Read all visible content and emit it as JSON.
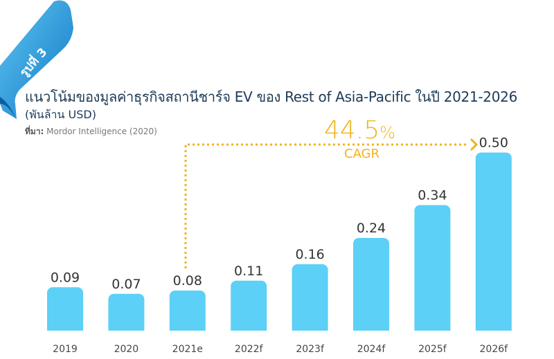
{
  "badge": "รูปที่ 3",
  "header": {
    "title": "แนวโน้มของมูลค่าธุรกิจสถานีชาร์จ EV ของ Rest of Asia-Pacific ในปี 2021-2026",
    "subtitle": "(พันล้าน USD)",
    "source_label": "ที่มา:",
    "source_text": " Mordor Intelligence (2020)"
  },
  "annotation": {
    "value": "44.5",
    "unit": "%",
    "label": "CAGR",
    "from": "2021e",
    "to": "2026f"
  },
  "colors": {
    "bar": "#5cd0f6",
    "accent": "#f0b31c",
    "title": "#1d3a57",
    "ribbon": "#1a8fd6"
  },
  "chart_data": {
    "type": "bar",
    "title": "แนวโน้มของมูลค่าธุรกิจสถานีชาร์จ EV ของ Rest of Asia-Pacific ในปี 2021-2026",
    "ylabel": "พันล้าน USD",
    "xlabel": "",
    "categories": [
      "2019",
      "2020",
      "2021e",
      "2022f",
      "2023f",
      "2024f",
      "2025f",
      "2026f"
    ],
    "values": [
      0.09,
      0.07,
      0.08,
      0.11,
      0.16,
      0.24,
      0.34,
      0.5
    ],
    "labels": [
      "0.09",
      "0.07",
      "0.08",
      "0.11",
      "0.16",
      "0.24",
      "0.34",
      "0.50"
    ],
    "grid": false
  }
}
